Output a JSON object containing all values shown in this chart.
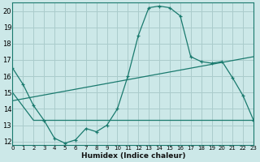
{
  "xlabel": "Humidex (Indice chaleur)",
  "background_color": "#cce8e8",
  "grid_color": "#aacccc",
  "line_color": "#1a7a6e",
  "xlim": [
    0,
    23
  ],
  "ylim": [
    11.8,
    20.5
  ],
  "yticks": [
    12,
    13,
    14,
    15,
    16,
    17,
    18,
    19,
    20
  ],
  "xticks": [
    0,
    1,
    2,
    3,
    4,
    5,
    6,
    7,
    8,
    9,
    10,
    11,
    12,
    13,
    14,
    15,
    16,
    17,
    18,
    19,
    20,
    21,
    22,
    23
  ],
  "xtick_labels": [
    "0",
    "1",
    "2",
    "3",
    "4",
    "5",
    "6",
    "7",
    "8",
    "9",
    "10",
    "11",
    "12",
    "13",
    "14",
    "15",
    "16",
    "17",
    "18",
    "19",
    "20",
    "21",
    "22",
    "23"
  ],
  "curve1_x": [
    0,
    1,
    2,
    3,
    4,
    5,
    6,
    7,
    8,
    9,
    10,
    11,
    12,
    13,
    14,
    15,
    16,
    17,
    18,
    19,
    20,
    21,
    22,
    23
  ],
  "curve1_y": [
    16.5,
    15.5,
    14.2,
    13.3,
    12.2,
    11.9,
    12.1,
    12.8,
    12.6,
    13.0,
    14.0,
    16.0,
    18.5,
    20.2,
    20.3,
    20.2,
    19.7,
    17.2,
    16.9,
    16.8,
    16.9,
    15.9,
    14.8,
    13.3
  ],
  "curve2_x": [
    0,
    2,
    10,
    20,
    23
  ],
  "curve2_y": [
    15.0,
    13.3,
    13.3,
    13.3,
    13.3
  ],
  "curve3_x": [
    0,
    23
  ],
  "curve3_y": [
    14.5,
    17.2
  ]
}
